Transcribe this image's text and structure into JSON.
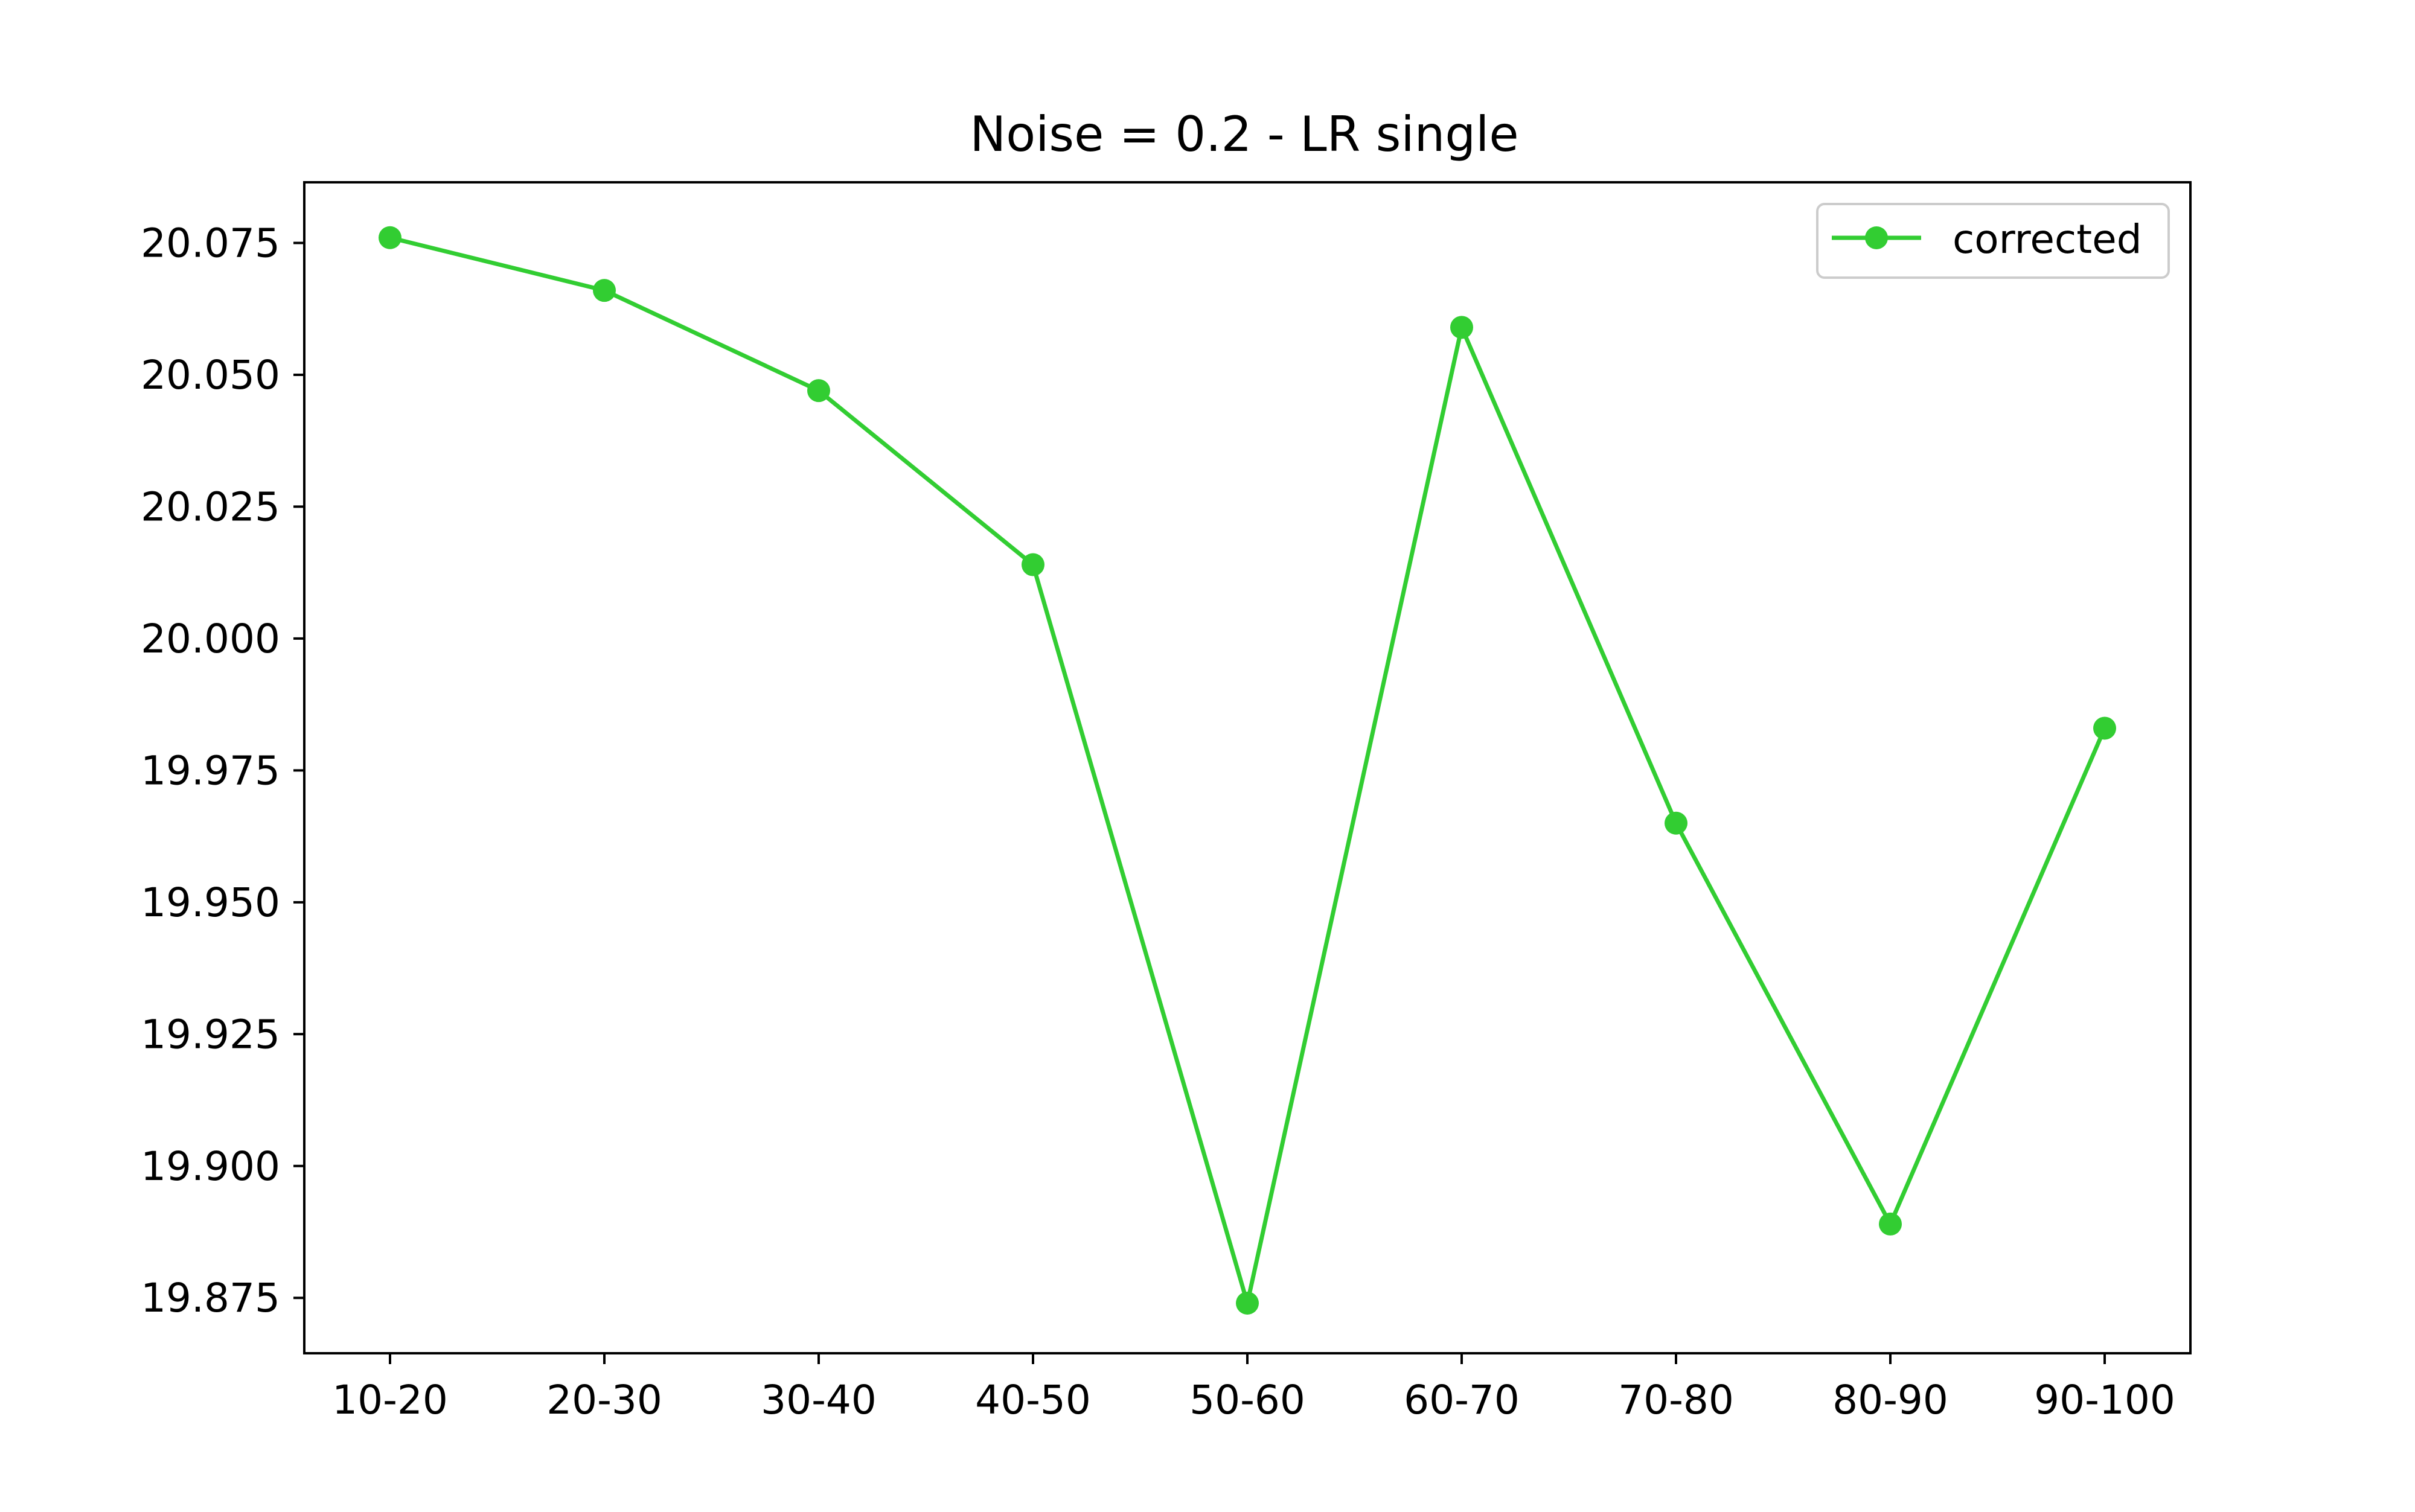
{
  "chart_data": {
    "type": "line",
    "title": "Noise = 0.2 - LR single",
    "xlabel": "",
    "ylabel": "",
    "categories": [
      "10-20",
      "20-30",
      "30-40",
      "40-50",
      "50-60",
      "60-70",
      "70-80",
      "80-90",
      "90-100"
    ],
    "series": [
      {
        "name": "corrected",
        "color": "#32cd32",
        "marker": "circle",
        "values": [
          20.076,
          20.066,
          20.047,
          20.014,
          19.874,
          20.059,
          19.965,
          19.889,
          19.983
        ]
      }
    ],
    "yticks": [
      19.875,
      19.9,
      19.925,
      19.95,
      19.975,
      20.0,
      20.025,
      20.05,
      20.075
    ],
    "ytick_labels": [
      "19.875",
      "19.900",
      "19.925",
      "19.950",
      "19.975",
      "20.000",
      "20.025",
      "20.050",
      "20.075"
    ],
    "ylim": [
      19.8645,
      20.0865
    ],
    "grid": false,
    "legend_position": "top-right"
  }
}
